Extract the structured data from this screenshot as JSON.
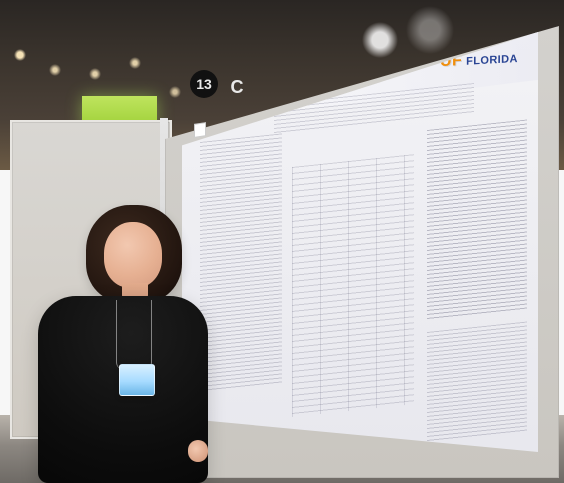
{
  "photo": {
    "signage": {
      "aisle_number": "13",
      "aisle_letter": "C"
    },
    "poster": {
      "logo": "UF FLORIDA"
    }
  }
}
